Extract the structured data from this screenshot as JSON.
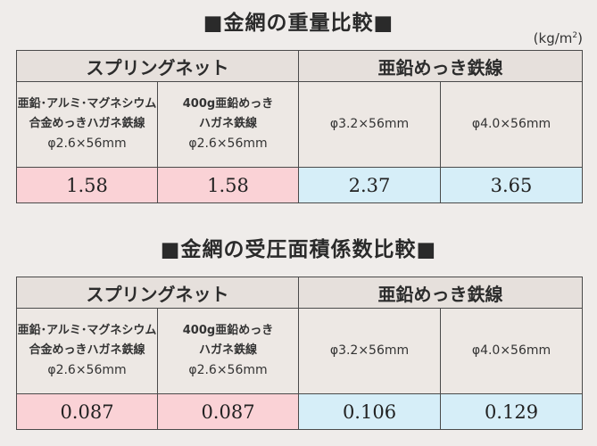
{
  "unit": {
    "base": "(kg/m",
    "exp": "2",
    "close": ")"
  },
  "tables": [
    {
      "title": "■金網の重量比較■",
      "group_spring": "スプリングネット",
      "group_zinc": "亜鉛めっき鉄線",
      "col1_l1": "亜鉛･アルミ･マグネシウム",
      "col1_l2": "合金めっきハガネ鉄線",
      "col1_dim": "φ2.6×56mm",
      "col2_l1": "400g亜鉛めっき",
      "col2_l2": "ハガネ鉄線",
      "col2_dim": "φ2.6×56mm",
      "col3_dim": "φ3.2×56mm",
      "col4_dim": "φ4.0×56mm",
      "values": [
        "1.58",
        "1.58",
        "2.37",
        "3.65"
      ]
    },
    {
      "title": "■金網の受圧面積係数比較■",
      "group_spring": "スプリングネット",
      "group_zinc": "亜鉛めっき鉄線",
      "col1_l1": "亜鉛･アルミ･マグネシウム",
      "col1_l2": "合金めっきハガネ鉄線",
      "col1_dim": "φ2.6×56mm",
      "col2_l1": "400g亜鉛めっき",
      "col2_l2": "ハガネ鉄線",
      "col2_dim": "φ2.6×56mm",
      "col3_dim": "φ3.2×56mm",
      "col4_dim": "φ4.0×56mm",
      "values": [
        "0.087",
        "0.087",
        "0.106",
        "0.129"
      ]
    }
  ],
  "colors": {
    "spring_value_bg": "#fad2d6",
    "zinc_value_bg": "#d6eef8"
  }
}
